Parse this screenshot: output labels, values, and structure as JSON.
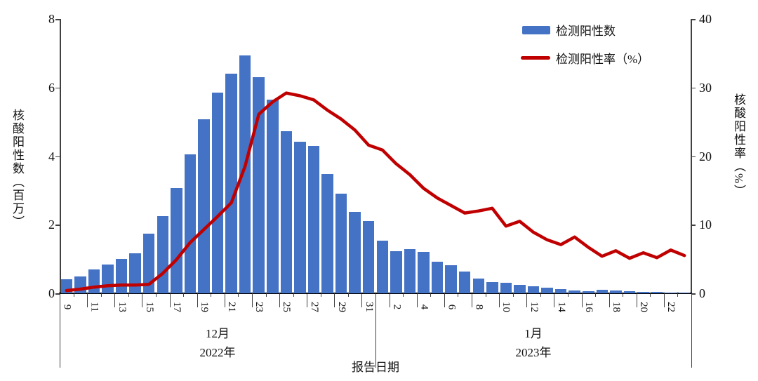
{
  "legend": {
    "items": [
      {
        "label": "检测阳性数",
        "type": "bar",
        "color": "#4472C4"
      },
      {
        "label": "检测阳性率（%）",
        "type": "line",
        "color": "#C00000"
      }
    ]
  },
  "left_axis": {
    "title": "核酸阳性数（百万）",
    "ticks": [
      0,
      2,
      4,
      6,
      8
    ],
    "max": 8
  },
  "right_axis": {
    "title": "核酸阳性率（%）",
    "ticks": [
      0,
      10,
      20,
      30,
      40
    ],
    "max": 40
  },
  "x_axis": {
    "title": "报告日期",
    "month_groups": [
      {
        "month_label": "12月",
        "year_label": "2022年",
        "day_labels": [
          9,
          11,
          13,
          15,
          17,
          19,
          21,
          23,
          25,
          27,
          29,
          31
        ]
      },
      {
        "month_label": "1月",
        "year_label": "2023年",
        "day_labels": [
          2,
          4,
          6,
          8,
          10,
          12,
          14,
          16,
          18,
          20,
          22
        ]
      }
    ]
  },
  "chart_data": {
    "type": "combo",
    "categories": [
      "2022-12-09",
      "2022-12-10",
      "2022-12-11",
      "2022-12-12",
      "2022-12-13",
      "2022-12-14",
      "2022-12-15",
      "2022-12-16",
      "2022-12-17",
      "2022-12-18",
      "2022-12-19",
      "2022-12-20",
      "2022-12-21",
      "2022-12-22",
      "2022-12-23",
      "2022-12-24",
      "2022-12-25",
      "2022-12-26",
      "2022-12-27",
      "2022-12-28",
      "2022-12-29",
      "2022-12-30",
      "2022-12-31",
      "2023-01-01",
      "2023-01-02",
      "2023-01-03",
      "2023-01-04",
      "2023-01-05",
      "2023-01-06",
      "2023-01-07",
      "2023-01-08",
      "2023-01-09",
      "2023-01-10",
      "2023-01-11",
      "2023-01-12",
      "2023-01-13",
      "2023-01-14",
      "2023-01-15",
      "2023-01-16",
      "2023-01-17",
      "2023-01-18",
      "2023-01-19",
      "2023-01-20",
      "2023-01-21",
      "2023-01-22",
      "2023-01-23"
    ],
    "series": [
      {
        "name": "检测阳性数",
        "type": "bar",
        "axis": "left",
        "unit": "百万",
        "color": "#4472C4",
        "values": [
          0.4,
          0.5,
          0.7,
          0.85,
          1.0,
          1.16,
          1.75,
          2.25,
          3.08,
          4.05,
          5.08,
          5.86,
          6.4,
          6.94,
          6.3,
          5.65,
          4.72,
          4.42,
          4.3,
          3.47,
          2.9,
          2.38,
          2.1,
          1.53,
          1.22,
          1.3,
          1.2,
          0.92,
          0.81,
          0.63,
          0.44,
          0.33,
          0.31,
          0.24,
          0.21,
          0.17,
          0.13,
          0.09,
          0.07,
          0.1,
          0.09,
          0.07,
          0.05,
          0.035,
          0.025,
          0.015
        ]
      },
      {
        "name": "检测阳性率（%）",
        "type": "line",
        "axis": "right",
        "unit": "%",
        "color": "#C00000",
        "values": [
          0.4,
          0.6,
          0.9,
          1.1,
          1.2,
          1.2,
          1.3,
          2.9,
          4.9,
          7.4,
          9.3,
          11.2,
          13.2,
          18.5,
          26.1,
          27.9,
          29.2,
          28.8,
          28.2,
          26.7,
          25.4,
          23.8,
          21.6,
          20.9,
          18.9,
          17.3,
          15.3,
          13.9,
          12.8,
          11.7,
          12.0,
          12.4,
          9.8,
          10.5,
          8.9,
          7.8,
          7.1,
          8.2,
          6.7,
          5.4,
          6.2,
          5.1,
          5.9,
          5.2,
          6.3,
          5.5
        ]
      }
    ],
    "left_ylim": [
      0,
      8
    ],
    "right_ylim": [
      0,
      40
    ],
    "grid": false,
    "legend_position": "top-right"
  }
}
